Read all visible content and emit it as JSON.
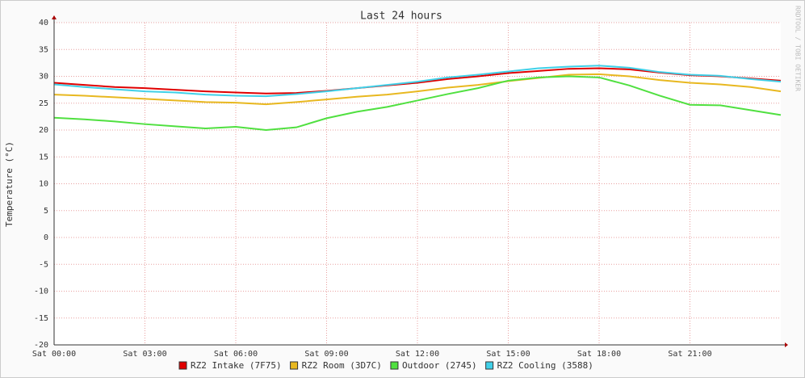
{
  "chart_data": {
    "type": "line",
    "title": "Last 24 hours",
    "y_label": "Temperature (°C)",
    "watermark": "RRDTOOL / TOBI OETIKER",
    "x": [
      0,
      1,
      2,
      3,
      4,
      5,
      6,
      7,
      8,
      9,
      10,
      11,
      12,
      13,
      14,
      15,
      16,
      17,
      18,
      19,
      20,
      21,
      22,
      23,
      24
    ],
    "xlim": [
      0,
      24
    ],
    "xticks": [
      {
        "value": 0,
        "label": "Sat 00:00"
      },
      {
        "value": 3,
        "label": "Sat 03:00"
      },
      {
        "value": 6,
        "label": "Sat 06:00"
      },
      {
        "value": 9,
        "label": "Sat 09:00"
      },
      {
        "value": 12,
        "label": "Sat 12:00"
      },
      {
        "value": 15,
        "label": "Sat 15:00"
      },
      {
        "value": 18,
        "label": "Sat 18:00"
      },
      {
        "value": 21,
        "label": "Sat 21:00"
      }
    ],
    "ylim": [
      -20,
      40
    ],
    "yticks": [
      -20,
      -15,
      -10,
      -5,
      0,
      5,
      10,
      15,
      20,
      25,
      30,
      35,
      40
    ],
    "grid": true,
    "series": [
      {
        "name": "RZ2 Intake (7F75)",
        "color": "#e00000",
        "values": [
          28.8,
          28.4,
          28.0,
          27.8,
          27.5,
          27.2,
          27.0,
          26.8,
          26.9,
          27.3,
          27.8,
          28.3,
          28.8,
          29.5,
          30.0,
          30.6,
          31.0,
          31.4,
          31.5,
          31.3,
          30.7,
          30.2,
          30.0,
          29.6,
          29.2
        ]
      },
      {
        "name": "RZ2 Room (3D7C)",
        "color": "#e8b820",
        "values": [
          26.6,
          26.4,
          26.1,
          25.8,
          25.5,
          25.2,
          25.1,
          24.8,
          25.2,
          25.7,
          26.2,
          26.6,
          27.2,
          27.9,
          28.4,
          29.1,
          29.7,
          30.3,
          30.4,
          30.0,
          29.3,
          28.8,
          28.5,
          28.0,
          27.2
        ]
      },
      {
        "name": "Outdoor (2745)",
        "color": "#50e040",
        "values": [
          22.3,
          22.0,
          21.6,
          21.1,
          20.7,
          20.3,
          20.6,
          20.0,
          20.5,
          22.2,
          23.4,
          24.3,
          25.5,
          26.7,
          27.8,
          29.2,
          29.8,
          30.0,
          29.8,
          28.3,
          26.4,
          24.7,
          24.6,
          23.7,
          22.8
        ]
      },
      {
        "name": "RZ2 Cooling (3588)",
        "color": "#40d0e8",
        "values": [
          28.5,
          28.0,
          27.6,
          27.2,
          27.0,
          26.6,
          26.4,
          26.3,
          26.7,
          27.2,
          27.8,
          28.4,
          29.0,
          29.8,
          30.3,
          30.9,
          31.5,
          31.8,
          32.0,
          31.6,
          30.8,
          30.3,
          30.1,
          29.5,
          29.0
        ]
      }
    ]
  }
}
